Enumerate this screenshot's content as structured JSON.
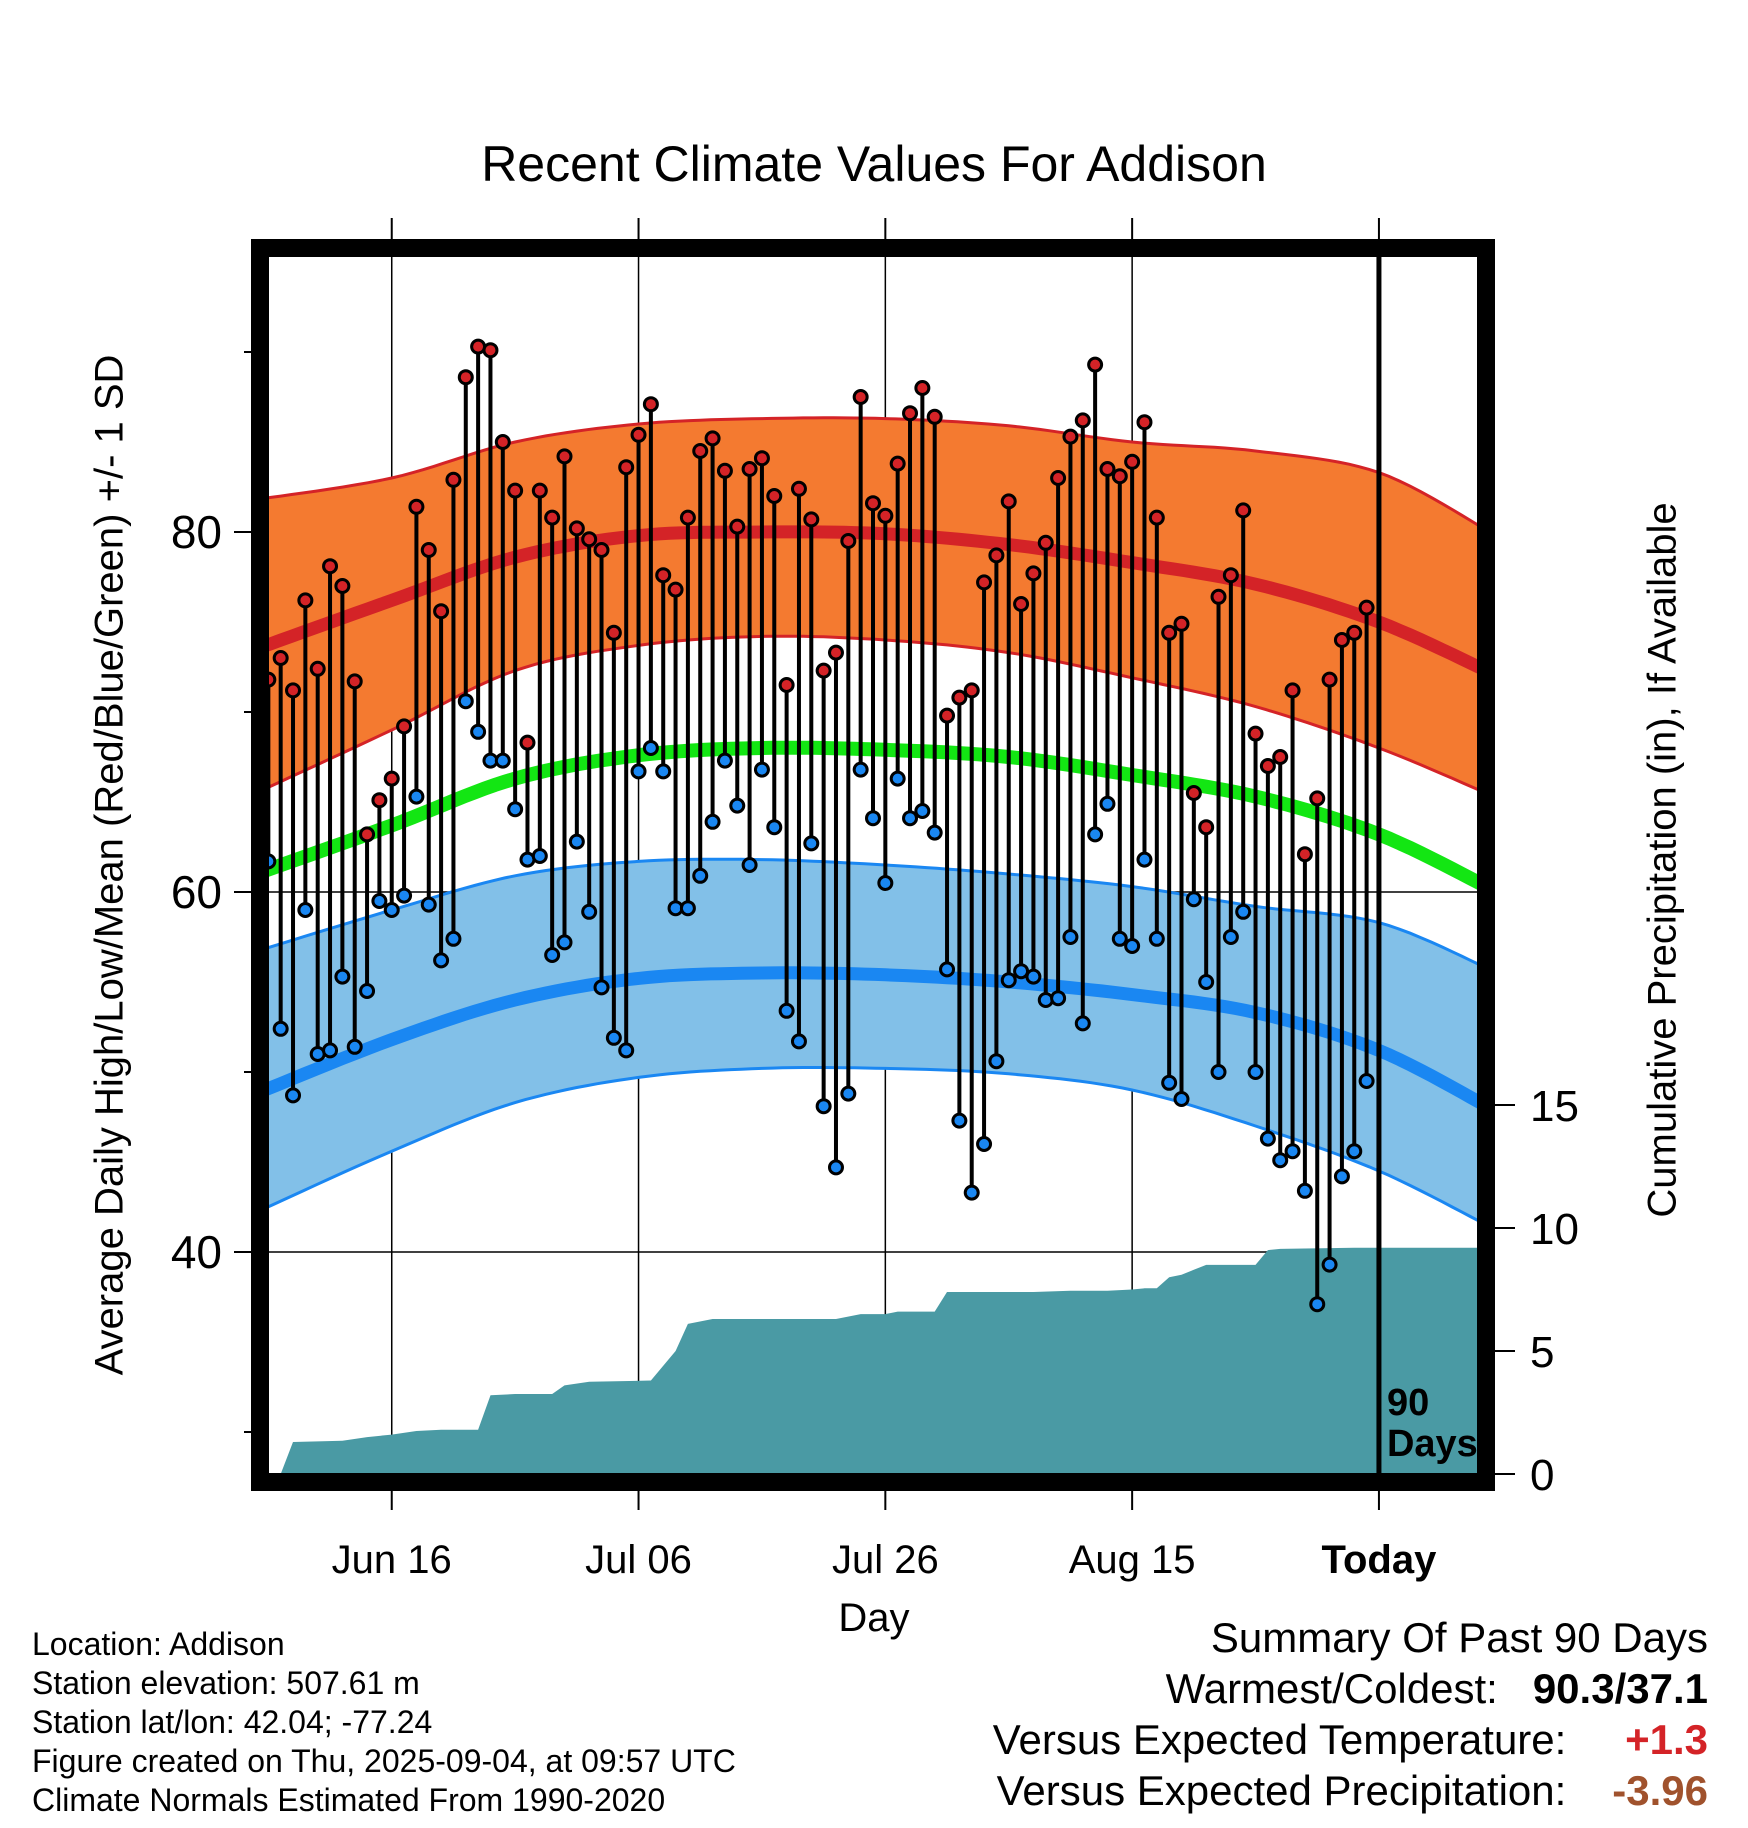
{
  "title": "Recent Climate Values For Addison",
  "ylabel_left": "Average Daily High/Low/Mean (Red/Blue/Green) +/- 1 SD",
  "ylabel_right": "Cumulative Precipitation (in), If Available",
  "xlabel": "Day",
  "info": {
    "location": "Location: Addison",
    "elevation": "Station elevation: 507.61 m",
    "latlon": "Station lat/lon: 42.04; -77.24",
    "created": "Figure created on Thu, 2025-09-04, at 09:57 UTC",
    "normals": "Climate Normals Estimated From 1990-2020"
  },
  "summary": {
    "heading": "Summary Of Past 90 Days",
    "warm_cold_label": "Warmest/Coldest:",
    "warm_cold_value": "90.3/37.1",
    "temp_label": "Versus Expected Temperature:",
    "temp_value": "+1.3",
    "precip_label": "Versus Expected Precipitation:",
    "precip_value": "-3.96"
  },
  "colors": {
    "high_band": "#f47a30",
    "high_line": "#d42327",
    "low_band": "#82c0e8",
    "low_line": "#1a87f2",
    "mean_line": "#13e613",
    "precip_fill": "#4a9aa4",
    "high_point": "#d42327",
    "low_point": "#1a87f2",
    "temp_value_color": "#d42327",
    "precip_value_color": "#a0522d"
  },
  "chart_data": {
    "type": "line",
    "x_tick_labels": [
      "Jun 16",
      "Jul 06",
      "Jul 26",
      "Aug 15",
      "Today"
    ],
    "x_tick_days": [
      0,
      20,
      40,
      60,
      80
    ],
    "xlim": [
      -11,
      89
    ],
    "ylim": [
      27,
      96
    ],
    "y_ticks_labeled": [
      40,
      60,
      80
    ],
    "y_ticks_minor": [
      30,
      50,
      70,
      90
    ],
    "precip_axis": {
      "ticks": [
        0,
        5,
        10,
        15
      ],
      "labels": [
        "0",
        "5",
        "10",
        "15"
      ]
    },
    "grid": true,
    "today_marker": {
      "day": 80,
      "label_line1": "90",
      "label_line2": "Days"
    },
    "normal_high": {
      "days": [
        -11,
        0,
        10,
        20,
        30,
        40,
        50,
        60,
        70,
        80,
        89
      ],
      "mean": [
        73.5,
        76.2,
        78.6,
        79.8,
        80.0,
        79.9,
        79.3,
        78.3,
        77.1,
        75.0,
        72.2
      ],
      "upper": [
        81.8,
        83.0,
        85.0,
        86.0,
        86.3,
        86.3,
        85.9,
        85.0,
        84.5,
        83.3,
        80.0
      ],
      "lower": [
        65.5,
        69.0,
        72.3,
        73.7,
        74.2,
        74.0,
        73.3,
        71.9,
        70.3,
        68.0,
        65.4
      ]
    },
    "normal_mean": {
      "days": [
        -11,
        0,
        10,
        20,
        30,
        40,
        50,
        60,
        70,
        80,
        89
      ],
      "values": [
        61.0,
        63.7,
        66.3,
        67.6,
        68.0,
        67.9,
        67.5,
        66.5,
        65.3,
        63.2,
        60.2
      ]
    },
    "normal_low": {
      "days": [
        -11,
        0,
        10,
        20,
        30,
        40,
        50,
        60,
        70,
        80,
        89
      ],
      "mean": [
        48.8,
        51.8,
        54.0,
        55.2,
        55.5,
        55.4,
        55.0,
        54.3,
        53.3,
        51.2,
        48.0
      ],
      "upper": [
        56.7,
        59.0,
        60.9,
        61.7,
        61.8,
        61.5,
        61.0,
        60.3,
        59.2,
        58.3,
        55.7
      ],
      "lower": [
        42.2,
        45.6,
        48.3,
        49.7,
        50.2,
        50.2,
        49.9,
        49.0,
        47.0,
        44.5,
        41.4
      ]
    },
    "daily": {
      "days": [
        -10,
        -9,
        -8,
        -7,
        -6,
        -5,
        -4,
        -3,
        -2,
        -1,
        0,
        1,
        2,
        3,
        4,
        5,
        6,
        7,
        8,
        9,
        10,
        11,
        12,
        13,
        14,
        15,
        16,
        17,
        18,
        19,
        20,
        21,
        22,
        23,
        24,
        25,
        26,
        27,
        28,
        29,
        30,
        31,
        32,
        33,
        34,
        35,
        36,
        37,
        38,
        39,
        40,
        41,
        42,
        43,
        44,
        45,
        46,
        47,
        48,
        49,
        50,
        51,
        52,
        53,
        54,
        55,
        56,
        57,
        58,
        59,
        60,
        61,
        62,
        63,
        64,
        65,
        66,
        67,
        68,
        69,
        70,
        71,
        72,
        73,
        74,
        75,
        76,
        77,
        78,
        79
      ],
      "high": [
        71.8,
        73.0,
        71.2,
        76.2,
        72.4,
        78.1,
        77.0,
        71.7,
        63.2,
        65.1,
        66.3,
        69.2,
        81.4,
        79.0,
        75.6,
        82.9,
        88.6,
        90.3,
        90.1,
        85.0,
        82.3,
        68.3,
        82.3,
        80.8,
        84.2,
        80.2,
        79.6,
        79.0,
        74.4,
        83.6,
        85.4,
        87.1,
        77.6,
        76.8,
        80.8,
        84.5,
        85.2,
        83.4,
        80.3,
        83.5,
        84.1,
        82.0,
        71.5,
        82.4,
        80.7,
        72.3,
        73.3,
        79.5,
        87.5,
        81.6,
        80.9,
        83.8,
        86.6,
        88.0,
        86.4,
        69.8,
        70.8,
        71.2,
        77.2,
        78.7,
        81.7,
        76.0,
        77.7,
        79.4,
        83.0,
        85.3,
        86.2,
        89.3,
        83.5,
        83.1,
        83.9,
        86.1,
        80.8,
        74.4,
        74.9,
        65.5,
        63.6,
        76.4,
        77.6,
        81.2,
        68.8,
        67.0,
        67.5,
        71.2,
        62.1,
        65.2,
        71.8,
        74.0,
        74.4,
        75.8
      ],
      "low": [
        61.7,
        52.4,
        48.7,
        59.0,
        51.0,
        51.2,
        55.3,
        51.4,
        54.5,
        59.5,
        59.0,
        59.8,
        65.3,
        59.3,
        56.2,
        57.4,
        70.6,
        68.9,
        67.3,
        67.3,
        64.6,
        61.8,
        62.0,
        56.5,
        57.2,
        62.8,
        58.9,
        54.7,
        51.9,
        51.2,
        66.7,
        68.0,
        66.7,
        59.1,
        59.1,
        60.9,
        63.9,
        67.3,
        64.8,
        61.5,
        66.8,
        63.6,
        53.4,
        51.7,
        62.7,
        48.1,
        44.7,
        48.8,
        66.8,
        64.1,
        60.5,
        66.3,
        64.1,
        64.5,
        63.3,
        55.7,
        47.3,
        43.3,
        46.0,
        50.6,
        55.1,
        55.6,
        55.3,
        54.0,
        54.1,
        57.5,
        52.7,
        63.2,
        64.9,
        57.4,
        57.0,
        61.8,
        57.4,
        49.4,
        48.5,
        59.6,
        55.0,
        50.0,
        57.5,
        58.9,
        50.0,
        46.3,
        45.1,
        45.6,
        43.4,
        37.1,
        39.3,
        44.2,
        45.6,
        49.5
      ]
    },
    "cumulative_precip": {
      "days": [
        -11,
        -9,
        -8,
        -4,
        -2,
        0,
        2,
        4,
        7,
        8,
        10,
        13,
        14,
        16,
        21,
        23,
        24,
        26,
        29,
        32,
        36,
        38,
        40,
        41,
        44,
        45,
        46,
        49,
        52,
        55,
        56,
        57,
        58,
        60,
        61,
        62,
        63,
        64,
        65,
        66,
        67,
        70,
        71,
        72,
        78,
        89
      ],
      "values": [
        0.0,
        0.0,
        1.3,
        1.35,
        1.5,
        1.6,
        1.75,
        1.8,
        1.8,
        3.2,
        3.25,
        3.25,
        3.6,
        3.75,
        3.8,
        5.0,
        6.1,
        6.3,
        6.3,
        6.3,
        6.3,
        6.5,
        6.5,
        6.6,
        6.6,
        7.4,
        7.4,
        7.4,
        7.4,
        7.45,
        7.45,
        7.45,
        7.45,
        7.5,
        7.55,
        7.55,
        8.0,
        8.1,
        8.3,
        8.5,
        8.5,
        8.5,
        9.1,
        9.15,
        9.2,
        9.2
      ]
    }
  }
}
